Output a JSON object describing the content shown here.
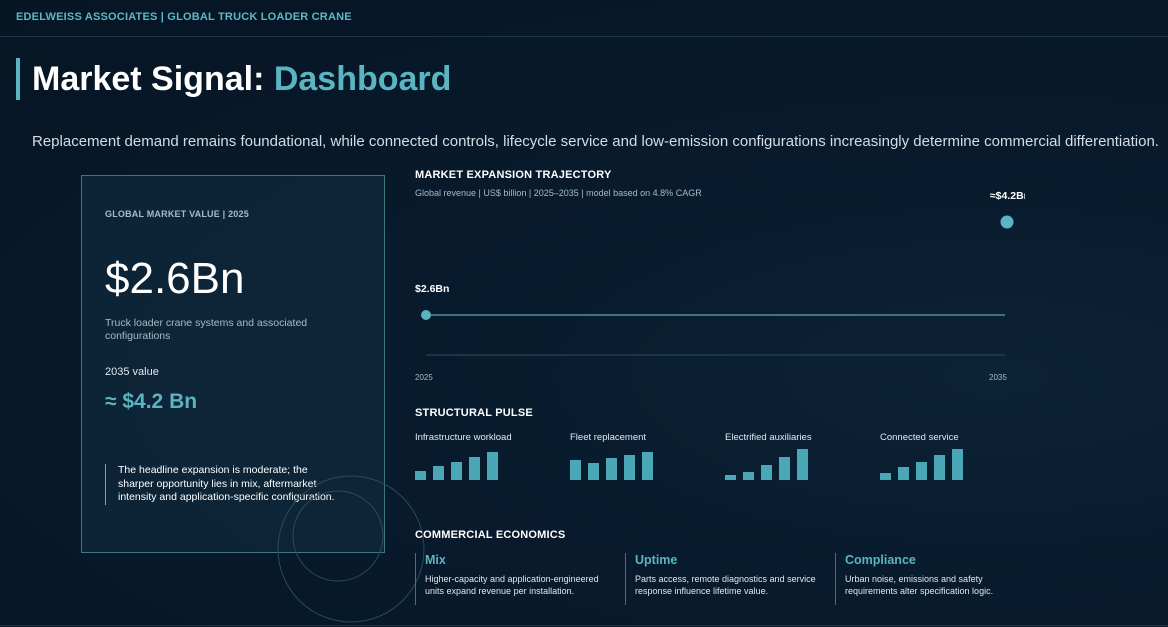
{
  "header": {
    "brand": "EDELWEISS ASSOCIATES | GLOBAL TRUCK LOADER CRANE",
    "title_main": "Market Signal: ",
    "title_accent": "Dashboard",
    "subtitle": "Replacement demand remains foundational, while connected controls, lifecycle service and low-emission configurations increasingly determine commercial differentiation."
  },
  "card": {
    "label": "GLOBAL MARKET VALUE | 2025",
    "value": "$2.6Bn",
    "description": "Truck loader crane systems and associated configurations",
    "value_2035_label": "2035 value",
    "value_2035": "≈ $4.2 Bn",
    "note": "The headline expansion is moderate; the sharper opportunity lies in mix, aftermarket intensity and application-specific configuration."
  },
  "trajectory": {
    "heading": "MARKET EXPANSION TRAJECTORY",
    "subtitle": "Global revenue | US$ billion | 2025–2035 | model based on 4.8% CAGR",
    "chart_data": {
      "type": "line",
      "x": [
        "2025",
        "2035"
      ],
      "values": [
        2.6,
        4.2
      ],
      "data_labels": [
        "$2.6Bn",
        "≈$4.2Bn"
      ],
      "tick_labels": [
        "2025",
        "2035"
      ],
      "color": "#5ab4c2"
    }
  },
  "pulse": {
    "heading": "STRUCTURAL PULSE",
    "items": [
      {
        "label": "Infrastructure workload",
        "bars": [
          0.3,
          0.44,
          0.59,
          0.74,
          0.89
        ]
      },
      {
        "label": "Fleet replacement",
        "bars": [
          0.63,
          0.56,
          0.7,
          0.81,
          0.89
        ]
      },
      {
        "label": "Electrified auxiliaries",
        "bars": [
          0.15,
          0.26,
          0.48,
          0.74,
          1.0
        ]
      },
      {
        "label": "Connected service",
        "bars": [
          0.22,
          0.41,
          0.59,
          0.81,
          1.0
        ]
      }
    ],
    "bar_color": "#4aa7b5"
  },
  "economics": {
    "heading": "COMMERCIAL ECONOMICS",
    "items": [
      {
        "title": "Mix",
        "desc": "Higher-capacity and application-engineered units expand revenue per installation."
      },
      {
        "title": "Uptime",
        "desc": "Parts access, remote diagnostics and service response influence lifetime value."
      },
      {
        "title": "Compliance",
        "desc": "Urban noise, emissions and safety requirements alter specification logic."
      }
    ]
  }
}
